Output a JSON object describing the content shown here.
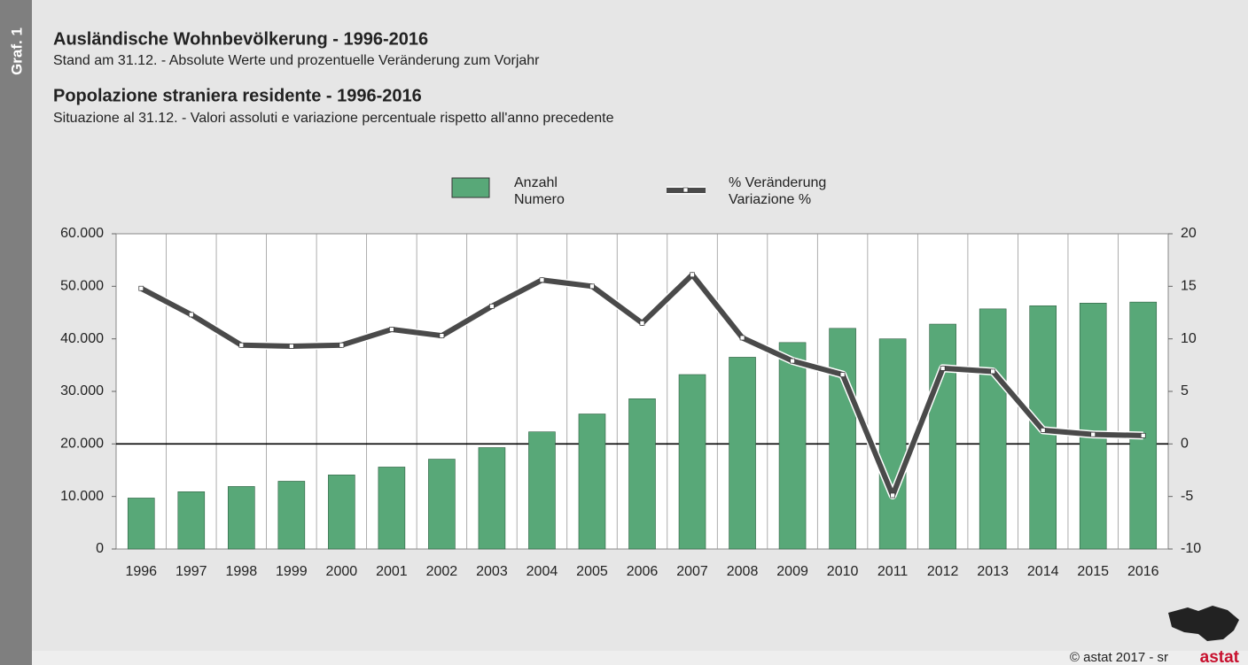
{
  "side_label": "Graf. 1",
  "copyright": "© astat 2017 - sr",
  "logo": "astat",
  "chart_data": {
    "type": "bar_line",
    "title": "Ausländische Wohnbevölkerung - 1996-2016",
    "subtitle": "Stand am 31.12. - Absolute Werte und prozentuelle Veränderung zum Vorjahr",
    "title_it": "Popolazione straniera residente - 1996-2016",
    "subtitle_it": "Situazione al 31.12. - Valori assoluti e variazione percentuale rispetto all'anno precedente",
    "categories": [
      "1996",
      "1997",
      "1998",
      "1999",
      "2000",
      "2001",
      "2002",
      "2003",
      "2004",
      "2005",
      "2006",
      "2007",
      "2008",
      "2009",
      "2010",
      "2011",
      "2012",
      "2013",
      "2014",
      "2015",
      "2016"
    ],
    "series": [
      {
        "name": "Anzahl\nNumero",
        "type": "bar",
        "color": "#58a878",
        "values": [
          9700,
          10900,
          11900,
          12900,
          14100,
          15600,
          17100,
          19300,
          22300,
          25700,
          28600,
          33200,
          36500,
          39300,
          42000,
          40000,
          42800,
          45700,
          46300,
          46800,
          47000
        ]
      },
      {
        "name": "% Veränderung\nVariazione %",
        "type": "line",
        "color": "#4a4a4a",
        "axis": "y2",
        "values": [
          14.8,
          12.3,
          9.4,
          9.3,
          9.4,
          10.9,
          10.3,
          13.1,
          15.6,
          15.0,
          11.5,
          16.1,
          10.1,
          7.9,
          6.6,
          -4.9,
          7.2,
          6.9,
          1.3,
          0.9,
          0.8
        ]
      }
    ],
    "ylim": [
      0,
      60000
    ],
    "yticks": [
      0,
      {
        "value": 10000,
        "label": "10.000"
      },
      {
        "value": 20000,
        "label": "20.000"
      },
      {
        "value": 30000,
        "label": "30.000"
      },
      {
        "value": 40000,
        "label": "40.000"
      },
      {
        "value": 50000,
        "label": "50.000"
      },
      {
        "value": 60000,
        "label": "60.000"
      }
    ],
    "y2lim": [
      -10,
      20
    ],
    "y2ticks": [
      -10,
      -5,
      0,
      5,
      10,
      15,
      20
    ]
  }
}
